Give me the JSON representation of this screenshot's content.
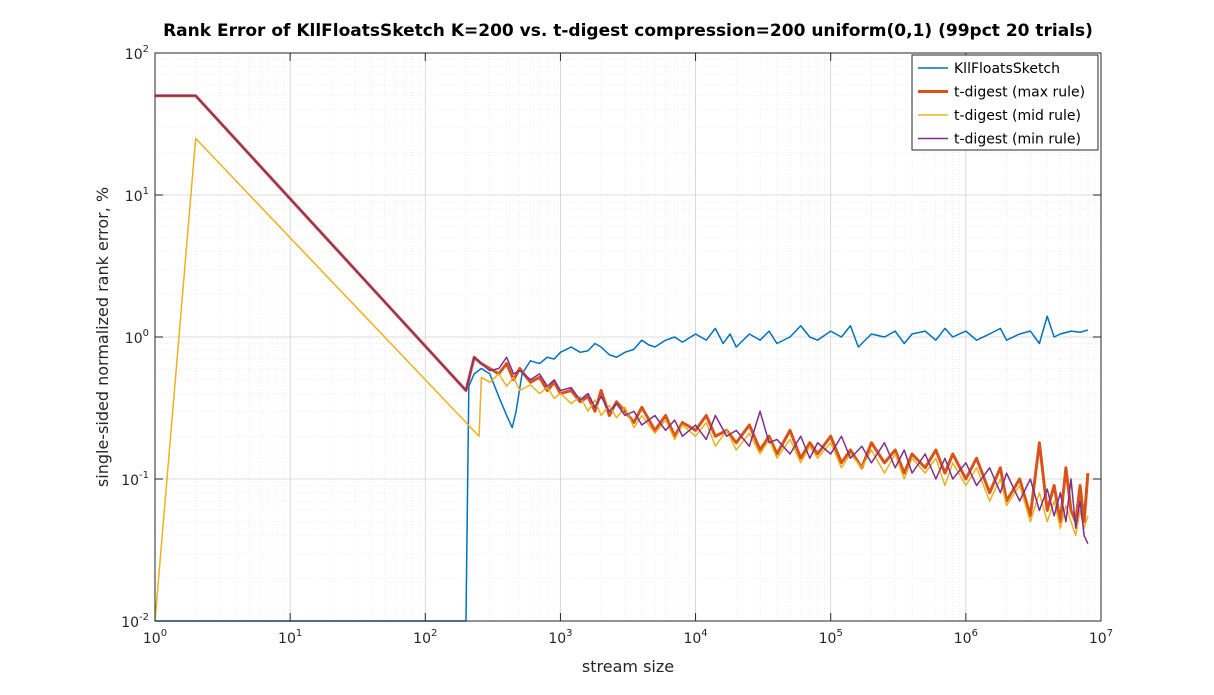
{
  "chart_data": {
    "type": "line",
    "title": "Rank Error of KllFloatsSketch K=200 vs. t-digest compression=200 uniform(0,1) (99pct 20 trials)",
    "xlabel": "stream size",
    "ylabel": "single-sided normalized rank error, %",
    "xscale": "log",
    "yscale": "log",
    "xlim": [
      1,
      10000000
    ],
    "ylim": [
      0.01,
      100
    ],
    "grid": true,
    "legend_position": "top-right",
    "x_ticks": [
      {
        "base": "10",
        "exp": "0",
        "value": 1
      },
      {
        "base": "10",
        "exp": "1",
        "value": 10
      },
      {
        "base": "10",
        "exp": "2",
        "value": 100
      },
      {
        "base": "10",
        "exp": "3",
        "value": 1000
      },
      {
        "base": "10",
        "exp": "4",
        "value": 10000
      },
      {
        "base": "10",
        "exp": "5",
        "value": 100000
      },
      {
        "base": "10",
        "exp": "6",
        "value": 1000000
      },
      {
        "base": "10",
        "exp": "7",
        "value": 10000000
      }
    ],
    "y_ticks": [
      {
        "base": "10",
        "exp": "-2",
        "value": 0.01
      },
      {
        "base": "10",
        "exp": "-1",
        "value": 0.1
      },
      {
        "base": "10",
        "exp": "0",
        "value": 1
      },
      {
        "base": "10",
        "exp": "1",
        "value": 10
      },
      {
        "base": "10",
        "exp": "2",
        "value": 100
      }
    ],
    "series": [
      {
        "name": "KllFloatsSketch",
        "color": "#0072BD",
        "width": 1.5,
        "points": [
          [
            1,
            0.01
          ],
          [
            200,
            0.01
          ],
          [
            210,
            0.45
          ],
          [
            230,
            0.55
          ],
          [
            260,
            0.6
          ],
          [
            300,
            0.55
          ],
          [
            350,
            0.38
          ],
          [
            400,
            0.28
          ],
          [
            440,
            0.23
          ],
          [
            470,
            0.3
          ],
          [
            520,
            0.55
          ],
          [
            600,
            0.68
          ],
          [
            700,
            0.65
          ],
          [
            800,
            0.72
          ],
          [
            900,
            0.7
          ],
          [
            1000,
            0.78
          ],
          [
            1200,
            0.85
          ],
          [
            1400,
            0.78
          ],
          [
            1600,
            0.8
          ],
          [
            1800,
            0.9
          ],
          [
            2000,
            0.85
          ],
          [
            2300,
            0.75
          ],
          [
            2600,
            0.72
          ],
          [
            3000,
            0.78
          ],
          [
            3500,
            0.82
          ],
          [
            4000,
            0.95
          ],
          [
            4500,
            0.88
          ],
          [
            5000,
            0.85
          ],
          [
            6000,
            0.95
          ],
          [
            7000,
            1.0
          ],
          [
            8000,
            0.92
          ],
          [
            10000,
            1.05
          ],
          [
            12000,
            0.95
          ],
          [
            14000,
            1.15
          ],
          [
            16000,
            0.9
          ],
          [
            18000,
            1.05
          ],
          [
            20000,
            0.85
          ],
          [
            25000,
            1.05
          ],
          [
            30000,
            0.95
          ],
          [
            35000,
            1.1
          ],
          [
            40000,
            0.9
          ],
          [
            50000,
            1.0
          ],
          [
            60000,
            1.2
          ],
          [
            70000,
            1.0
          ],
          [
            80000,
            0.95
          ],
          [
            100000,
            1.1
          ],
          [
            120000,
            1.0
          ],
          [
            140000,
            1.2
          ],
          [
            160000,
            0.85
          ],
          [
            200000,
            1.05
          ],
          [
            250000,
            1.0
          ],
          [
            300000,
            1.1
          ],
          [
            350000,
            0.9
          ],
          [
            400000,
            1.05
          ],
          [
            500000,
            1.1
          ],
          [
            600000,
            0.95
          ],
          [
            700000,
            1.15
          ],
          [
            800000,
            1.0
          ],
          [
            1000000,
            1.1
          ],
          [
            1200000,
            0.95
          ],
          [
            1500000,
            1.05
          ],
          [
            1800000,
            1.15
          ],
          [
            2000000,
            0.95
          ],
          [
            2500000,
            1.05
          ],
          [
            3000000,
            1.1
          ],
          [
            3500000,
            0.9
          ],
          [
            4000000,
            1.4
          ],
          [
            4500000,
            1.0
          ],
          [
            5000000,
            1.05
          ],
          [
            6000000,
            1.1
          ],
          [
            7000000,
            1.08
          ],
          [
            8000000,
            1.12
          ]
        ]
      },
      {
        "name": "t-digest (max rule)",
        "color": "#D95319",
        "width": 3,
        "points": [
          [
            1,
            50
          ],
          [
            2,
            50
          ],
          [
            200,
            0.42
          ],
          [
            230,
            0.72
          ],
          [
            260,
            0.65
          ],
          [
            300,
            0.6
          ],
          [
            350,
            0.55
          ],
          [
            400,
            0.65
          ],
          [
            450,
            0.5
          ],
          [
            500,
            0.6
          ],
          [
            600,
            0.48
          ],
          [
            700,
            0.52
          ],
          [
            800,
            0.42
          ],
          [
            900,
            0.48
          ],
          [
            1000,
            0.4
          ],
          [
            1200,
            0.42
          ],
          [
            1400,
            0.35
          ],
          [
            1600,
            0.38
          ],
          [
            1800,
            0.3
          ],
          [
            2000,
            0.42
          ],
          [
            2300,
            0.28
          ],
          [
            2600,
            0.35
          ],
          [
            3000,
            0.3
          ],
          [
            3500,
            0.25
          ],
          [
            4000,
            0.32
          ],
          [
            5000,
            0.22
          ],
          [
            6000,
            0.28
          ],
          [
            7000,
            0.2
          ],
          [
            8000,
            0.25
          ],
          [
            10000,
            0.22
          ],
          [
            12000,
            0.28
          ],
          [
            14000,
            0.2
          ],
          [
            17000,
            0.22
          ],
          [
            20000,
            0.18
          ],
          [
            25000,
            0.24
          ],
          [
            30000,
            0.16
          ],
          [
            35000,
            0.2
          ],
          [
            40000,
            0.15
          ],
          [
            50000,
            0.22
          ],
          [
            60000,
            0.14
          ],
          [
            70000,
            0.18
          ],
          [
            80000,
            0.15
          ],
          [
            100000,
            0.2
          ],
          [
            120000,
            0.13
          ],
          [
            140000,
            0.16
          ],
          [
            170000,
            0.12
          ],
          [
            200000,
            0.18
          ],
          [
            250000,
            0.13
          ],
          [
            300000,
            0.16
          ],
          [
            350000,
            0.11
          ],
          [
            400000,
            0.15
          ],
          [
            500000,
            0.12
          ],
          [
            600000,
            0.16
          ],
          [
            700000,
            0.11
          ],
          [
            800000,
            0.15
          ],
          [
            1000000,
            0.1
          ],
          [
            1200000,
            0.14
          ],
          [
            1500000,
            0.08
          ],
          [
            1800000,
            0.12
          ],
          [
            2000000,
            0.07
          ],
          [
            2500000,
            0.1
          ],
          [
            3000000,
            0.055
          ],
          [
            3500000,
            0.18
          ],
          [
            4000000,
            0.06
          ],
          [
            4500000,
            0.09
          ],
          [
            5000000,
            0.05
          ],
          [
            5500000,
            0.12
          ],
          [
            6000000,
            0.06
          ],
          [
            6500000,
            0.05
          ],
          [
            7000000,
            0.09
          ],
          [
            7500000,
            0.05
          ],
          [
            8000000,
            0.11
          ]
        ]
      },
      {
        "name": "t-digest (mid rule)",
        "color": "#EDB120",
        "width": 1.5,
        "points": [
          [
            1,
            0.01
          ],
          [
            2,
            25
          ],
          [
            250,
            0.2
          ],
          [
            260,
            0.52
          ],
          [
            300,
            0.48
          ],
          [
            350,
            0.55
          ],
          [
            400,
            0.45
          ],
          [
            450,
            0.52
          ],
          [
            500,
            0.42
          ],
          [
            600,
            0.46
          ],
          [
            700,
            0.4
          ],
          [
            800,
            0.44
          ],
          [
            900,
            0.37
          ],
          [
            1000,
            0.4
          ],
          [
            1200,
            0.34
          ],
          [
            1400,
            0.38
          ],
          [
            1600,
            0.3
          ],
          [
            1800,
            0.36
          ],
          [
            2000,
            0.28
          ],
          [
            2300,
            0.33
          ],
          [
            2600,
            0.27
          ],
          [
            3000,
            0.32
          ],
          [
            3500,
            0.23
          ],
          [
            4000,
            0.28
          ],
          [
            5000,
            0.21
          ],
          [
            6000,
            0.26
          ],
          [
            7000,
            0.19
          ],
          [
            8000,
            0.24
          ],
          [
            10000,
            0.2
          ],
          [
            12000,
            0.25
          ],
          [
            14000,
            0.17
          ],
          [
            17000,
            0.22
          ],
          [
            20000,
            0.16
          ],
          [
            25000,
            0.21
          ],
          [
            30000,
            0.15
          ],
          [
            35000,
            0.19
          ],
          [
            40000,
            0.14
          ],
          [
            50000,
            0.19
          ],
          [
            60000,
            0.13
          ],
          [
            70000,
            0.17
          ],
          [
            80000,
            0.14
          ],
          [
            100000,
            0.18
          ],
          [
            120000,
            0.12
          ],
          [
            140000,
            0.15
          ],
          [
            170000,
            0.12
          ],
          [
            200000,
            0.16
          ],
          [
            250000,
            0.11
          ],
          [
            300000,
            0.15
          ],
          [
            350000,
            0.1
          ],
          [
            400000,
            0.14
          ],
          [
            500000,
            0.11
          ],
          [
            600000,
            0.14
          ],
          [
            700000,
            0.09
          ],
          [
            800000,
            0.13
          ],
          [
            1000000,
            0.09
          ],
          [
            1200000,
            0.12
          ],
          [
            1500000,
            0.07
          ],
          [
            1800000,
            0.1
          ],
          [
            2000000,
            0.065
          ],
          [
            2500000,
            0.09
          ],
          [
            3000000,
            0.05
          ],
          [
            3500000,
            0.08
          ],
          [
            4000000,
            0.05
          ],
          [
            4500000,
            0.07
          ],
          [
            5000000,
            0.045
          ],
          [
            5500000,
            0.065
          ],
          [
            6000000,
            0.05
          ],
          [
            6500000,
            0.04
          ],
          [
            7000000,
            0.06
          ],
          [
            7500000,
            0.045
          ],
          [
            8000000,
            0.055
          ]
        ]
      },
      {
        "name": "t-digest (min rule)",
        "color": "#7E2F8E",
        "width": 1.5,
        "points": [
          [
            1,
            50
          ],
          [
            2,
            50
          ],
          [
            200,
            0.42
          ],
          [
            230,
            0.72
          ],
          [
            260,
            0.65
          ],
          [
            300,
            0.58
          ],
          [
            350,
            0.6
          ],
          [
            400,
            0.72
          ],
          [
            450,
            0.55
          ],
          [
            500,
            0.58
          ],
          [
            600,
            0.5
          ],
          [
            700,
            0.55
          ],
          [
            800,
            0.45
          ],
          [
            900,
            0.5
          ],
          [
            1000,
            0.42
          ],
          [
            1200,
            0.44
          ],
          [
            1400,
            0.36
          ],
          [
            1600,
            0.4
          ],
          [
            1800,
            0.32
          ],
          [
            2000,
            0.38
          ],
          [
            2300,
            0.3
          ],
          [
            2600,
            0.34
          ],
          [
            3000,
            0.28
          ],
          [
            3500,
            0.3
          ],
          [
            4000,
            0.24
          ],
          [
            5000,
            0.28
          ],
          [
            6000,
            0.22
          ],
          [
            7000,
            0.26
          ],
          [
            8000,
            0.2
          ],
          [
            10000,
            0.24
          ],
          [
            12000,
            0.19
          ],
          [
            14000,
            0.28
          ],
          [
            17000,
            0.2
          ],
          [
            20000,
            0.22
          ],
          [
            25000,
            0.17
          ],
          [
            30000,
            0.3
          ],
          [
            35000,
            0.18
          ],
          [
            40000,
            0.19
          ],
          [
            50000,
            0.15
          ],
          [
            60000,
            0.2
          ],
          [
            70000,
            0.14
          ],
          [
            80000,
            0.18
          ],
          [
            100000,
            0.15
          ],
          [
            120000,
            0.2
          ],
          [
            140000,
            0.14
          ],
          [
            170000,
            0.17
          ],
          [
            200000,
            0.13
          ],
          [
            250000,
            0.18
          ],
          [
            300000,
            0.12
          ],
          [
            350000,
            0.16
          ],
          [
            400000,
            0.11
          ],
          [
            500000,
            0.15
          ],
          [
            600000,
            0.1
          ],
          [
            700000,
            0.14
          ],
          [
            800000,
            0.1
          ],
          [
            1000000,
            0.13
          ],
          [
            1200000,
            0.09
          ],
          [
            1500000,
            0.12
          ],
          [
            1800000,
            0.08
          ],
          [
            2000000,
            0.11
          ],
          [
            2500000,
            0.07
          ],
          [
            3000000,
            0.1
          ],
          [
            3500000,
            0.06
          ],
          [
            4000000,
            0.085
          ],
          [
            4500000,
            0.055
          ],
          [
            5000000,
            0.08
          ],
          [
            5500000,
            0.05
          ],
          [
            6000000,
            0.1
          ],
          [
            6500000,
            0.045
          ],
          [
            7000000,
            0.07
          ],
          [
            7500000,
            0.04
          ],
          [
            8000000,
            0.035
          ]
        ]
      }
    ]
  }
}
